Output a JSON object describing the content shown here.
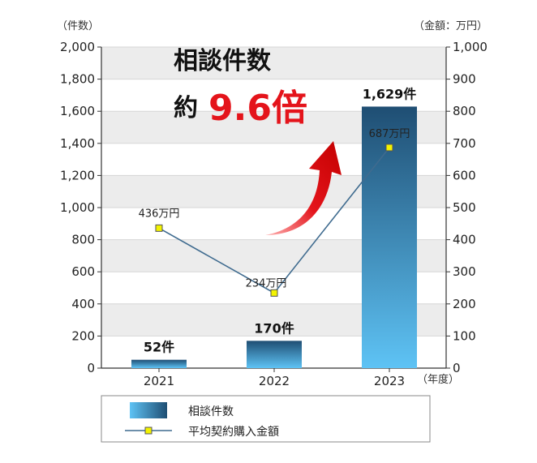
{
  "chart_data": {
    "type": "bar",
    "categories": [
      "2021",
      "2022",
      "2023"
    ],
    "series": [
      {
        "name": "相談件数",
        "axis": "left",
        "type": "bar",
        "values": [
          52,
          170,
          1629
        ],
        "data_labels": [
          "52件",
          "170件",
          "1,629件"
        ]
      },
      {
        "name": "平均契約購入金額",
        "axis": "right",
        "type": "line",
        "values": [
          436,
          234,
          687
        ],
        "data_labels": [
          "436万円",
          "234万円",
          "687万円"
        ]
      }
    ],
    "left_axis": {
      "unit_label": "（件数）",
      "ylim": [
        0,
        2000
      ],
      "ticks": [
        0,
        200,
        400,
        600,
        800,
        1000,
        1200,
        1400,
        1600,
        1800,
        2000
      ],
      "tick_labels": [
        "0",
        "200",
        "400",
        "600",
        "800",
        "1,000",
        "1,200",
        "1,400",
        "1,600",
        "1,800",
        "2,000"
      ]
    },
    "right_axis": {
      "unit_label": "（金額：万円）",
      "ylim": [
        0,
        1000
      ],
      "ticks": [
        0,
        100,
        200,
        300,
        400,
        500,
        600,
        700,
        800,
        900,
        1000
      ],
      "tick_labels": [
        "0",
        "100",
        "200",
        "300",
        "400",
        "500",
        "600",
        "700",
        "800",
        "900",
        "1,000"
      ]
    },
    "x_unit_label": "（年度）",
    "annotation": {
      "line1": "相談件数",
      "prefix": "約",
      "multiplier": "9.6倍"
    },
    "legend": {
      "position": "bottom",
      "items": [
        {
          "label": "相談件数",
          "kind": "bar"
        },
        {
          "label": "平均契約購入金額",
          "kind": "line"
        }
      ]
    },
    "grid": "horizontal-bands",
    "colors": {
      "bar_top": "#1f4e73",
      "bar_bottom": "#5ec3f5",
      "line": "#3f6b8f",
      "marker_fill": "#f3f300",
      "marker_stroke": "#555555",
      "arrow": "#e4141b",
      "band": "#ececec",
      "multiplier_text": "#e4141b"
    }
  }
}
